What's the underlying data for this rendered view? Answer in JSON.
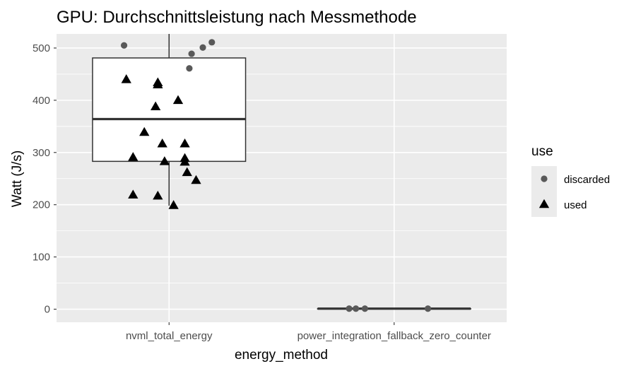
{
  "chart_data": {
    "type": "boxplot",
    "title": "GPU: Durchschnittsleistung nach Messmethode",
    "xlabel": "energy_method",
    "ylabel": "Watt (J/s)",
    "categories": [
      "nvml_total_energy",
      "power_integration_fallback_zero_counter"
    ],
    "ylim": [
      -25,
      527
    ],
    "yticks": [
      0,
      100,
      200,
      300,
      400,
      500
    ],
    "grid": true,
    "background": "#ebebeb",
    "grid_color": "#ffffff",
    "boxes": [
      {
        "category": "nvml_total_energy",
        "lower_whisker": 198,
        "q1": 283,
        "median": 364,
        "q3": 481,
        "upper_whisker": 527
      },
      {
        "category": "power_integration_fallback_zero_counter",
        "lower_whisker": 1,
        "q1": 1,
        "median": 1,
        "q3": 1,
        "upper_whisker": 1
      }
    ],
    "legend": {
      "title": "use",
      "placement": "right",
      "entries": [
        {
          "label": "discarded",
          "shape": "circle",
          "color": "#595959"
        },
        {
          "label": "used",
          "shape": "triangle",
          "color": "#000000"
        }
      ]
    },
    "series": [
      {
        "name": "discarded",
        "points": [
          {
            "category": "nvml_total_energy",
            "jitter": -0.2,
            "y": 505
          },
          {
            "category": "nvml_total_energy",
            "jitter": 0.1,
            "y": 489
          },
          {
            "category": "nvml_total_energy",
            "jitter": 0.15,
            "y": 501
          },
          {
            "category": "nvml_total_energy",
            "jitter": 0.19,
            "y": 511
          },
          {
            "category": "nvml_total_energy",
            "jitter": 0.09,
            "y": 461
          },
          {
            "category": "power_integration_fallback_zero_counter",
            "jitter": -0.2,
            "y": 1
          },
          {
            "category": "power_integration_fallback_zero_counter",
            "jitter": -0.17,
            "y": 1
          },
          {
            "category": "power_integration_fallback_zero_counter",
            "jitter": -0.13,
            "y": 1
          },
          {
            "category": "power_integration_fallback_zero_counter",
            "jitter": 0.15,
            "y": 1
          }
        ]
      },
      {
        "name": "used",
        "points": [
          {
            "category": "nvml_total_energy",
            "jitter": -0.19,
            "y": 440
          },
          {
            "category": "nvml_total_energy",
            "jitter": -0.05,
            "y": 434
          },
          {
            "category": "nvml_total_energy",
            "jitter": -0.05,
            "y": 430
          },
          {
            "category": "nvml_total_energy",
            "jitter": 0.04,
            "y": 400
          },
          {
            "category": "nvml_total_energy",
            "jitter": -0.06,
            "y": 388
          },
          {
            "category": "nvml_total_energy",
            "jitter": -0.11,
            "y": 339
          },
          {
            "category": "nvml_total_energy",
            "jitter": -0.03,
            "y": 317
          },
          {
            "category": "nvml_total_energy",
            "jitter": 0.07,
            "y": 317
          },
          {
            "category": "nvml_total_energy",
            "jitter": -0.16,
            "y": 291
          },
          {
            "category": "nvml_total_energy",
            "jitter": -0.02,
            "y": 283
          },
          {
            "category": "nvml_total_energy",
            "jitter": 0.07,
            "y": 289
          },
          {
            "category": "nvml_total_energy",
            "jitter": 0.07,
            "y": 282
          },
          {
            "category": "nvml_total_energy",
            "jitter": 0.08,
            "y": 262
          },
          {
            "category": "nvml_total_energy",
            "jitter": 0.12,
            "y": 247
          },
          {
            "category": "nvml_total_energy",
            "jitter": -0.16,
            "y": 219
          },
          {
            "category": "nvml_total_energy",
            "jitter": -0.05,
            "y": 217
          },
          {
            "category": "nvml_total_energy",
            "jitter": 0.02,
            "y": 199
          }
        ]
      }
    ]
  }
}
